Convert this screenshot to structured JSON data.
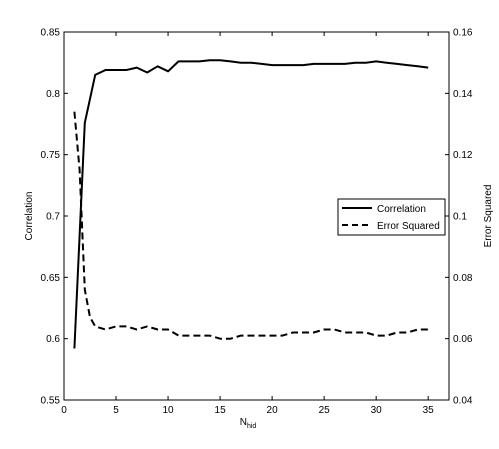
{
  "chart_data": {
    "type": "line",
    "xlabel": "N",
    "xlabel_subscript": "hid",
    "ylabel_left": "Correlation",
    "ylabel_right": "Error Squared",
    "xlim": [
      0,
      37
    ],
    "ylim_left": [
      0.55,
      0.85
    ],
    "ylim_right": [
      0.04,
      0.16
    ],
    "xticks": [
      0,
      5,
      10,
      15,
      20,
      25,
      30,
      35
    ],
    "yticks_left": [
      0.55,
      0.6,
      0.65,
      0.7,
      0.75,
      0.8,
      0.85
    ],
    "yticks_right": [
      0.04,
      0.06,
      0.08,
      0.1,
      0.12,
      0.14,
      0.16
    ],
    "grid": false,
    "legend_position": "right",
    "series": [
      {
        "name": "Correlation",
        "axis": "left",
        "style": "solid",
        "color": "#000000",
        "x": [
          1,
          2,
          3,
          4,
          5,
          6,
          7,
          8,
          9,
          10,
          11,
          12,
          13,
          14,
          15,
          16,
          17,
          18,
          19,
          20,
          21,
          22,
          23,
          24,
          25,
          26,
          27,
          28,
          29,
          30,
          31,
          32,
          33,
          34,
          35
        ],
        "y": [
          0.592,
          0.776,
          0.815,
          0.819,
          0.819,
          0.819,
          0.821,
          0.817,
          0.822,
          0.818,
          0.826,
          0.826,
          0.826,
          0.827,
          0.827,
          0.826,
          0.825,
          0.825,
          0.824,
          0.823,
          0.823,
          0.823,
          0.823,
          0.824,
          0.824,
          0.824,
          0.824,
          0.825,
          0.825,
          0.826,
          0.825,
          0.824,
          0.823,
          0.822,
          0.821
        ]
      },
      {
        "name": "Error Squared",
        "axis": "right",
        "style": "dashed",
        "color": "#000000",
        "x": [
          1,
          1.5,
          2,
          2.5,
          3,
          4,
          5,
          6,
          7,
          8,
          9,
          10,
          11,
          12,
          13,
          14,
          15,
          16,
          17,
          18,
          19,
          20,
          21,
          22,
          23,
          24,
          25,
          26,
          27,
          28,
          29,
          30,
          31,
          32,
          33,
          34,
          35
        ],
        "y": [
          0.134,
          0.115,
          0.076,
          0.067,
          0.064,
          0.063,
          0.064,
          0.064,
          0.063,
          0.064,
          0.063,
          0.063,
          0.061,
          0.061,
          0.061,
          0.061,
          0.06,
          0.06,
          0.061,
          0.061,
          0.061,
          0.061,
          0.061,
          0.062,
          0.062,
          0.062,
          0.063,
          0.063,
          0.062,
          0.062,
          0.062,
          0.061,
          0.061,
          0.062,
          0.062,
          0.063,
          0.063
        ]
      }
    ]
  }
}
